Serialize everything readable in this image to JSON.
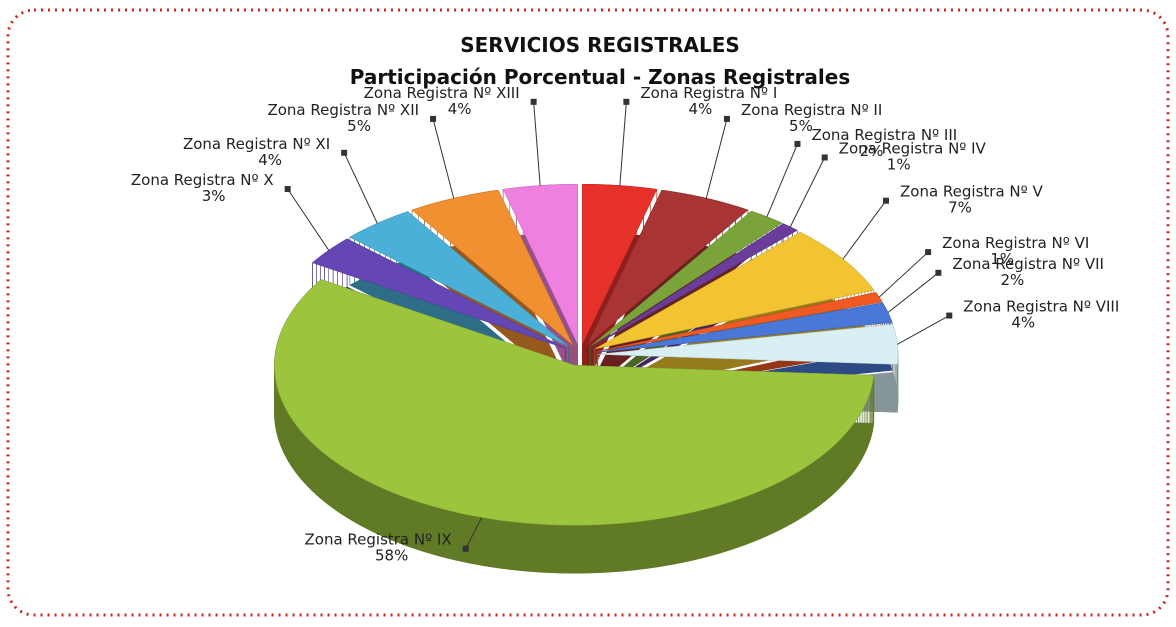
{
  "chart_data": {
    "type": "pie",
    "title": "SERVICIOS REGISTRALES",
    "subtitle": "Participación Porcentual - Zonas Registrales",
    "categories": [
      "Zona Registra Nº I",
      "Zona Registra Nº II",
      "Zona Registra Nº III",
      "Zona Registra Nº IV",
      "Zona Registra Nº V",
      "Zona Registra Nº VI",
      "Zona Registra Nº VII",
      "Zona Registra Nº VIII",
      "Zona Registra Nº IX",
      "Zona Registra Nº X",
      "Zona Registra Nº XI",
      "Zona Registra Nº XII",
      "Zona Registra Nº XIII"
    ],
    "values": [
      4,
      5,
      2,
      1,
      7,
      1,
      2,
      4,
      58,
      3,
      4,
      5,
      4
    ],
    "value_labels": [
      "4%",
      "5%",
      "2%",
      "1%",
      "7%",
      "1%",
      "2%",
      "4%",
      "58%",
      "3%",
      "4%",
      "5%",
      "4%"
    ],
    "colors": [
      "#e8302a",
      "#a83434",
      "#7aa33a",
      "#6a3d9a",
      "#f2c431",
      "#f05a22",
      "#4a78d8",
      "#d8f0f4",
      "#9cc43c",
      "#6447b4",
      "#4ab0d8",
      "#f09030",
      "#f080e0"
    ]
  }
}
